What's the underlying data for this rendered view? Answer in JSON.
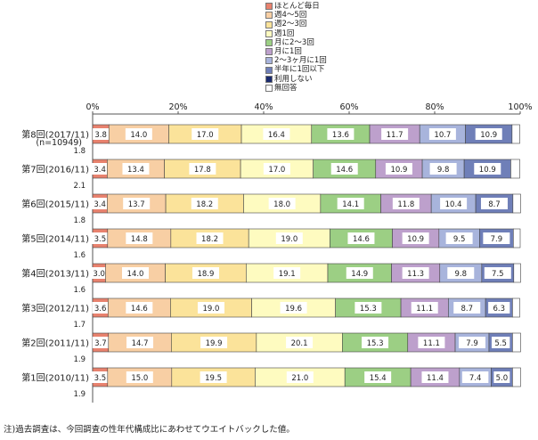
{
  "chart_data": {
    "type": "bar",
    "orientation": "horizontal",
    "stacked": true,
    "xlim": [
      0,
      100
    ],
    "x_ticks": [
      "0%",
      "20%",
      "40%",
      "60%",
      "80%",
      "100%"
    ],
    "legend_position": "top-right",
    "categories": [
      {
        "label": "第8回(2017/11)",
        "sub": "(n=10949)"
      },
      {
        "label": "第7回(2016/11)",
        "sub": ""
      },
      {
        "label": "第6回(2015/11)",
        "sub": ""
      },
      {
        "label": "第5回(2014/11)",
        "sub": ""
      },
      {
        "label": "第4回(2013/11)",
        "sub": ""
      },
      {
        "label": "第3回(2012/11)",
        "sub": ""
      },
      {
        "label": "第2回(2011/11)",
        "sub": ""
      },
      {
        "label": "第1回(2010/11)",
        "sub": ""
      }
    ],
    "series": [
      {
        "name": "ほとんど毎日",
        "color": "#e8826e",
        "values": [
          3.8,
          3.4,
          3.4,
          3.5,
          3.0,
          3.6,
          3.7,
          3.5
        ]
      },
      {
        "name": "週4～5回",
        "color": "#f8cfa4",
        "values": [
          14.0,
          13.4,
          13.7,
          14.8,
          14.0,
          14.6,
          14.7,
          15.0
        ]
      },
      {
        "name": "週2～3回",
        "color": "#fbe39a",
        "values": [
          17.0,
          17.8,
          18.2,
          18.2,
          18.9,
          19.0,
          19.9,
          19.5
        ]
      },
      {
        "name": "週1回",
        "color": "#fefbc0",
        "values": [
          16.4,
          17.0,
          18.0,
          19.0,
          19.1,
          19.6,
          20.1,
          21.0
        ]
      },
      {
        "name": "月に2～3回",
        "color": "#9ccf84",
        "values": [
          13.6,
          14.6,
          14.1,
          14.6,
          14.9,
          15.3,
          15.3,
          15.4
        ]
      },
      {
        "name": "月に1回",
        "color": "#bda0cc",
        "values": [
          11.7,
          10.9,
          11.8,
          10.9,
          11.3,
          11.1,
          11.1,
          11.4
        ]
      },
      {
        "name": "2～3ヶ月に1回",
        "color": "#a8b4dc",
        "values": [
          10.7,
          9.8,
          10.4,
          9.5,
          9.8,
          8.7,
          7.9,
          7.4
        ]
      },
      {
        "name": "半年に1回以下",
        "color": "#6f7fb8",
        "values": [
          10.9,
          10.9,
          8.7,
          7.9,
          7.5,
          6.3,
          5.5,
          5.0
        ]
      },
      {
        "name": "利用しない",
        "color": "#1a2a6e",
        "values": [
          null,
          null,
          null,
          null,
          null,
          null,
          null,
          null
        ]
      },
      {
        "name": "無回答",
        "color": "#ffffff",
        "values": [
          1.8,
          2.1,
          1.8,
          1.6,
          1.6,
          1.7,
          1.9,
          1.9
        ]
      }
    ],
    "note": "注)過去調査は、今回調査の性年代構成比にあわせてウエイトバックした値。"
  }
}
